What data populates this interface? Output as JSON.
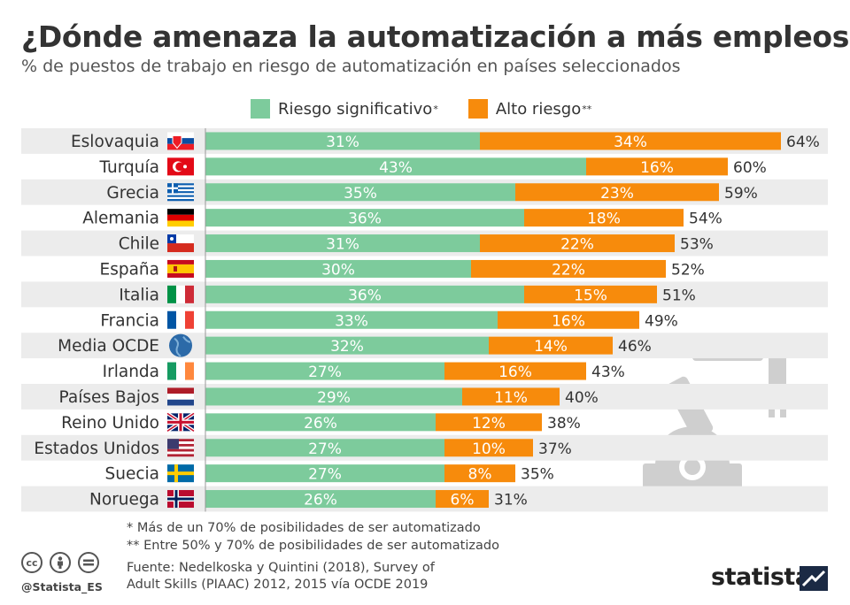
{
  "header": {
    "title": "¿Dónde amenaza la automatización a más empleos?",
    "subtitle": "% de puestos de trabajo en riesgo de automatización en países seleccionados"
  },
  "legend": {
    "significant": "Riesgo significativo",
    "significant_mark": "*",
    "high": "Alto riesgo",
    "high_mark": "**"
  },
  "colors": {
    "significant": "#7dcb9c",
    "high": "#f78b0c",
    "row_bg": "#ececec"
  },
  "chart_data": {
    "type": "bar",
    "orientation": "horizontal",
    "stacked": true,
    "categories": [
      "Eslovaquia",
      "Turquía",
      "Grecia",
      "Alemania",
      "Chile",
      "España",
      "Italia",
      "Francia",
      "Media OCDE",
      "Irlanda",
      "Países Bajos",
      "Reino Unido",
      "Estados Unidos",
      "Suecia",
      "Noruega"
    ],
    "flags": [
      "flag-slovakia",
      "flag-turkey",
      "flag-greece",
      "flag-germany",
      "flag-chile",
      "flag-spain",
      "flag-italy",
      "flag-france",
      "globe-icon",
      "flag-ireland",
      "flag-netherlands",
      "flag-uk",
      "flag-usa",
      "flag-sweden",
      "flag-norway"
    ],
    "series": [
      {
        "name": "Riesgo significativo",
        "values": [
          31,
          43,
          35,
          36,
          31,
          30,
          36,
          33,
          32,
          27,
          29,
          26,
          27,
          27,
          26
        ]
      },
      {
        "name": "Alto riesgo",
        "values": [
          34,
          16,
          23,
          18,
          22,
          22,
          15,
          16,
          14,
          16,
          11,
          12,
          10,
          8,
          6
        ]
      }
    ],
    "total_labels": [
      "64%",
      "60%",
      "59%",
      "54%",
      "53%",
      "52%",
      "51%",
      "49%",
      "46%",
      "43%",
      "40%",
      "38%",
      "37%",
      "35%",
      "31%"
    ],
    "value_suffix": "%",
    "xlim": [
      0,
      65
    ],
    "legend_position": "top"
  },
  "footnotes": {
    "note1": "*   Más de un 70% de posibilidades de ser automatizado",
    "note2": "** Entre 50% y 70% de posibilidades de ser automatizado"
  },
  "source": {
    "line1": "Fuente: Nedelkoska y Quintini (2018), Survey of",
    "line2": "Adult Skills (PIAAC) 2012, 2015 vía OCDE 2019"
  },
  "footer": {
    "handle": "@Statista_ES",
    "brand": "statista"
  }
}
